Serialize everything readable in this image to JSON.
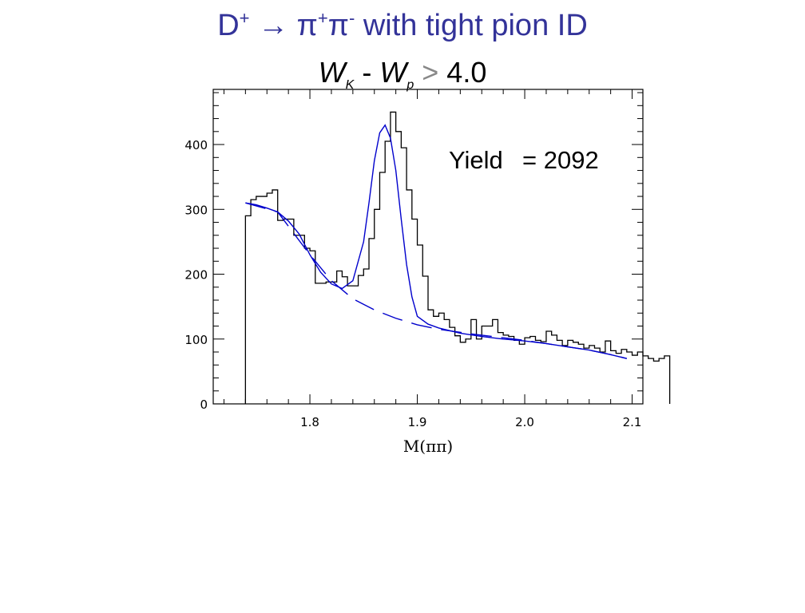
{
  "title": {
    "d_label": "D",
    "d_charge": "+",
    "arrow": "→",
    "pi1": "π",
    "pi1_charge": "+",
    "pi2": "π",
    "pi2_charge": "-",
    "text": "with tight pion ID"
  },
  "cut": {
    "w1": "W",
    "sub1": "K",
    "minus": "-",
    "w2": "W",
    "sub2": "p",
    "gt": ">",
    "value": "4.0"
  },
  "colors": {
    "title": "#333399",
    "fit": "#0000cc",
    "histogram": "#000000"
  },
  "chart_data": {
    "type": "bar",
    "title": "",
    "xlabel": "M(ππ)",
    "ylabel": "",
    "xlim": [
      1.71,
      2.11
    ],
    "ylim": [
      0,
      485
    ],
    "x_ticks": [
      1.8,
      1.9,
      2.0,
      2.1
    ],
    "x_tick_labels": [
      "1.8",
      "1.9",
      "2.0",
      "2.1"
    ],
    "y_ticks": [
      0,
      100,
      200,
      300,
      400
    ],
    "y_tick_labels": [
      "0",
      "100",
      "200",
      "300",
      "400"
    ],
    "bin_start": 1.74,
    "bin_width": 0.005,
    "histogram_values": [
      290,
      315,
      320,
      320,
      325,
      330,
      283,
      285,
      285,
      260,
      260,
      240,
      236,
      186,
      186,
      188,
      188,
      205,
      196,
      182,
      182,
      198,
      208,
      255,
      300,
      357,
      405,
      450,
      420,
      395,
      330,
      285,
      245,
      197,
      145,
      135,
      140,
      130,
      118,
      105,
      95,
      100,
      130,
      100,
      120,
      120,
      130,
      110,
      106,
      104,
      98,
      92,
      102,
      104,
      98,
      96,
      112,
      106,
      98,
      90,
      98,
      95,
      92,
      86,
      90,
      86,
      80,
      97,
      82,
      78,
      84,
      80,
      75,
      80,
      74,
      70,
      66,
      70,
      74
    ],
    "annotation_label": "Yield",
    "annotation_value": "= 2092",
    "fit": {
      "x": [
        1.74,
        1.75,
        1.76,
        1.77,
        1.78,
        1.79,
        1.8,
        1.81,
        1.82,
        1.83,
        1.84,
        1.85,
        1.855,
        1.86,
        1.865,
        1.87,
        1.875,
        1.88,
        1.885,
        1.89,
        1.895,
        1.9,
        1.91,
        1.92,
        1.94,
        1.96,
        1.98,
        2.0,
        2.02,
        2.04,
        2.06,
        2.08,
        2.095
      ],
      "y": [
        310,
        307,
        302,
        296,
        282,
        262,
        230,
        203,
        185,
        178,
        190,
        250,
        310,
        375,
        418,
        430,
        410,
        360,
        285,
        215,
        165,
        135,
        123,
        117,
        109,
        104,
        100,
        97,
        93,
        88,
        83,
        76,
        70
      ]
    },
    "background": {
      "x": [
        1.74,
        1.77,
        1.8,
        1.82,
        1.84,
        1.86,
        1.88,
        1.9,
        1.92,
        1.95,
        1.98,
        2.0,
        2.02,
        2.04,
        2.06,
        2.08,
        2.095
      ],
      "y": [
        310,
        296,
        230,
        190,
        162,
        145,
        132,
        122,
        115,
        108,
        102,
        98,
        93,
        88,
        83,
        76,
        70
      ]
    }
  }
}
